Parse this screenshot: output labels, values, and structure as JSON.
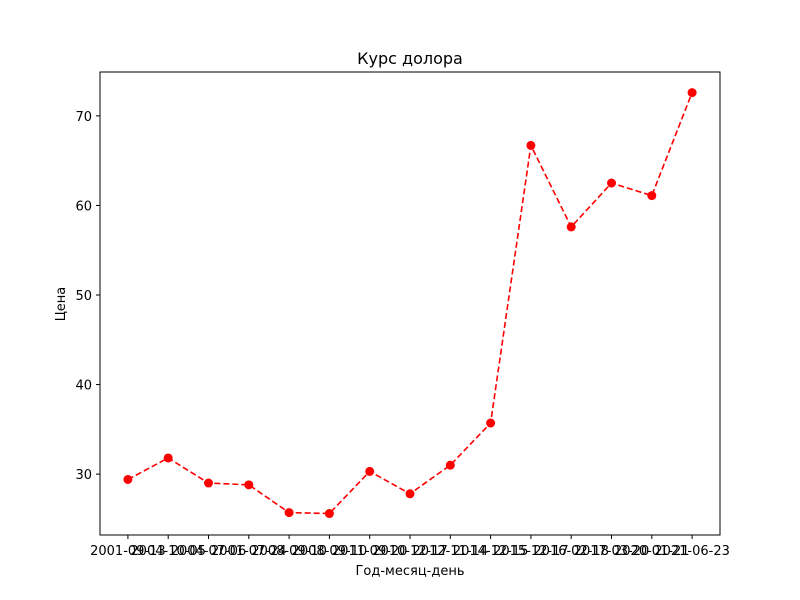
{
  "chart_data": {
    "type": "line",
    "title": "Курс долора",
    "xlabel": "Год-месяц-день",
    "ylabel": "Цена",
    "x_tick_labels": [
      "2001-09-13",
      "2004-10-05",
      "2004-07-06",
      "2001-07-24",
      "2008-09-10",
      "2008-09-10",
      "2011-09-20",
      "2010-12-17",
      "2012-11-14",
      "2014-12-15",
      "2015-12-17",
      "2016-02-18",
      "2017-03-20",
      "2020-01-21",
      "2021-06-23"
    ],
    "series": [
      {
        "values": [
          29.4,
          31.8,
          29.0,
          28.8,
          25.7,
          25.6,
          30.3,
          27.8,
          31.0,
          35.7,
          66.7,
          57.6,
          62.5,
          61.1,
          72.6
        ],
        "color": "#ff0000",
        "line_style": "dashed",
        "marker": "circle"
      }
    ],
    "ylim": [
      23.2,
      74.9
    ],
    "y_ticks": [
      30,
      40,
      50,
      60,
      70
    ],
    "grid": false,
    "legend": "none"
  }
}
